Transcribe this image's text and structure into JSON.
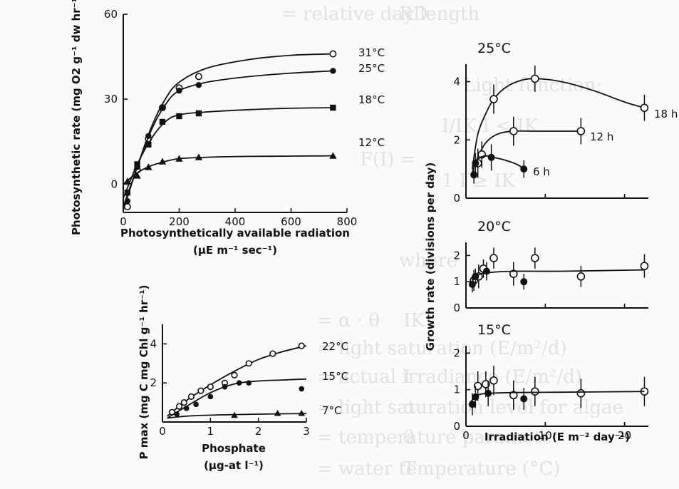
{
  "background_text": {
    "lines": [
      {
        "left": "RD",
        "right": "=   relative day length"
      },
      {
        "left": "",
        "right": "Light function:"
      },
      {
        "left": "",
        "right": "I/IK    I < IK"
      },
      {
        "left": "",
        "right": "F(I) ="
      },
      {
        "left": "",
        "right": "1       I ≥ IK"
      },
      {
        "left": "",
        "right": "where"
      },
      {
        "left": "IK",
        "right": "=   α · θ"
      },
      {
        "left": "",
        "right": "=   light saturation (E/m²/d)"
      },
      {
        "left": "I",
        "right": "=   actual irradiance (E/m²/d)"
      },
      {
        "left": "α",
        "right": "=   light saturation level for algae"
      },
      {
        "left": "θ",
        "right": "=   temperature parameter"
      },
      {
        "left": "T",
        "right": "=   water temperature (°C)"
      }
    ]
  },
  "chart_data": [
    {
      "type": "line",
      "ylabel": "Photosynthetic rate (mg O2 g⁻¹ dw hr⁻¹)",
      "xlabel": "Photosynthetically available radiation",
      "xlabel_unit": "(μE m⁻¹ sec⁻¹)",
      "xlim": [
        0,
        800
      ],
      "ylim": [
        -10,
        60
      ],
      "xticks": [
        0,
        200,
        400,
        600,
        800
      ],
      "yticks": [
        0,
        30,
        60
      ],
      "series": [
        {
          "name": "31°C",
          "marker": "circle-open",
          "x": [
            15,
            50,
            90,
            140,
            200,
            270,
            750
          ],
          "y": [
            -8,
            5,
            16,
            27,
            34,
            38,
            46
          ],
          "curve_x": [
            0,
            50,
            100,
            150,
            200,
            300,
            450,
            600,
            750
          ],
          "curve_y": [
            -9,
            6,
            20,
            30,
            36,
            41,
            44,
            45.5,
            46
          ]
        },
        {
          "name": "25°C",
          "marker": "circle-filled",
          "x": [
            15,
            50,
            90,
            140,
            200,
            270,
            750
          ],
          "y": [
            -6,
            6,
            17,
            27,
            33,
            35,
            40
          ],
          "curve_x": [
            0,
            50,
            100,
            150,
            200,
            300,
            450,
            600,
            750
          ],
          "curve_y": [
            -8,
            6,
            19,
            28,
            33,
            36,
            38,
            39.2,
            40
          ]
        },
        {
          "name": "18°C",
          "marker": "square-filled",
          "x": [
            15,
            50,
            90,
            140,
            200,
            270,
            750
          ],
          "y": [
            -3,
            7,
            14,
            22,
            24,
            25,
            27
          ],
          "curve_x": [
            0,
            50,
            100,
            150,
            200,
            300,
            450,
            600,
            750
          ],
          "curve_y": [
            -5,
            7,
            16,
            22,
            24.5,
            25.5,
            26.3,
            26.8,
            27
          ]
        },
        {
          "name": "12°C",
          "marker": "triangle-filled",
          "x": [
            15,
            50,
            90,
            140,
            200,
            270,
            750
          ],
          "y": [
            1,
            3,
            6,
            8,
            9,
            9.5,
            10
          ],
          "curve_x": [
            0,
            50,
            100,
            150,
            200,
            300,
            450,
            600,
            750
          ],
          "curve_y": [
            0,
            4,
            6.5,
            8,
            9,
            9.5,
            9.8,
            9.9,
            10
          ]
        }
      ]
    },
    {
      "type": "line",
      "ylabel": "P max (mg C mg Chl g⁻¹ hr⁻¹)",
      "xlabel": "Phosphate",
      "xlabel_unit": "(μg-at l⁻¹)",
      "xlim": [
        0,
        3
      ],
      "ylim": [
        0,
        5
      ],
      "xticks": [
        0,
        1,
        2,
        3
      ],
      "yticks": [
        2,
        4
      ],
      "series": [
        {
          "name": "22°C",
          "marker": "circle-open",
          "x": [
            0.2,
            0.35,
            0.45,
            0.6,
            0.8,
            1.0,
            1.3,
            1.5,
            1.8,
            2.3,
            2.9
          ],
          "y": [
            0.5,
            0.8,
            1.0,
            1.3,
            1.6,
            1.8,
            2.0,
            2.4,
            3.0,
            3.5,
            3.9
          ],
          "curve_x": [
            0.1,
            0.5,
            1.0,
            1.5,
            2.0,
            2.5,
            3.0
          ],
          "curve_y": [
            0.3,
            1.1,
            1.9,
            2.6,
            3.2,
            3.6,
            3.9
          ]
        },
        {
          "name": "15°C",
          "marker": "circle-filled",
          "x": [
            0.3,
            0.5,
            0.7,
            1.0,
            1.3,
            1.6,
            1.8,
            2.9
          ],
          "y": [
            0.4,
            0.7,
            0.9,
            1.3,
            1.8,
            2.0,
            2.0,
            1.7
          ],
          "curve_x": [
            0.1,
            0.5,
            1.0,
            1.5,
            2.0,
            2.5,
            3.0
          ],
          "curve_y": [
            0.2,
            0.8,
            1.5,
            1.95,
            2.1,
            2.15,
            2.2
          ]
        },
        {
          "name": "7°C",
          "marker": "triangle-filled",
          "x": [
            1.5,
            2.4,
            2.9
          ],
          "y": [
            0.35,
            0.45,
            0.45
          ],
          "curve_x": [
            0.1,
            0.5,
            1.0,
            1.5,
            2.0,
            2.5,
            3.0
          ],
          "curve_y": [
            0.2,
            0.3,
            0.35,
            0.38,
            0.4,
            0.42,
            0.43
          ]
        }
      ]
    },
    {
      "type": "line",
      "title": "25°C",
      "xlim": [
        0,
        23
      ],
      "ylim": [
        0,
        4.6
      ],
      "yticks": [
        0,
        2,
        4
      ],
      "series": [
        {
          "name": "18 h",
          "marker": "circle-open",
          "x": [
            1.5,
            3.5,
            8.7,
            22.5
          ],
          "y": [
            1.2,
            3.4,
            4.1,
            3.1
          ],
          "err": [
            0.5,
            0.5,
            0.45,
            0.45
          ],
          "curve_x": [
            0.8,
            1.5,
            2.5,
            3.5,
            5,
            7,
            9,
            12,
            16,
            20,
            22.5
          ],
          "curve_y": [
            1.0,
            2.2,
            2.9,
            3.4,
            3.8,
            4.05,
            4.1,
            4.0,
            3.7,
            3.3,
            3.1
          ]
        },
        {
          "name": "12 h",
          "marker": "circle-open",
          "x": [
            2.0,
            6.0,
            14.5
          ],
          "y": [
            1.5,
            2.3,
            2.3
          ],
          "err": [
            0.45,
            0.5,
            0.45
          ],
          "curve_x": [
            0.8,
            1.5,
            2.5,
            4,
            6,
            9,
            12,
            14.5
          ],
          "curve_y": [
            0.9,
            1.4,
            1.9,
            2.2,
            2.3,
            2.3,
            2.3,
            2.3
          ]
        },
        {
          "name": "6 h",
          "marker": "circle-filled",
          "x": [
            1.0,
            1.2,
            3.2,
            7.3
          ],
          "y": [
            0.8,
            1.2,
            1.4,
            1.0
          ],
          "err": [
            0.3,
            0.35,
            0.45,
            0.3
          ],
          "curve_x": [
            0.8,
            1.5,
            2.5,
            3.5,
            5,
            6.5,
            7.3
          ],
          "curve_y": [
            1.1,
            1.35,
            1.45,
            1.4,
            1.3,
            1.15,
            1.0
          ]
        }
      ]
    },
    {
      "type": "scatter",
      "title": "20°C",
      "ylabel": "Growth rate (divisions per day)",
      "xlim": [
        0,
        23
      ],
      "ylim": [
        0,
        2.5
      ],
      "yticks": [
        0,
        1,
        2
      ],
      "series": [
        {
          "name": "",
          "marker": "circle-open",
          "x": [
            1.0,
            1.6,
            2.2,
            3.5,
            8.7,
            6.0,
            14.5,
            22.5
          ],
          "y": [
            1.05,
            1.2,
            1.5,
            1.9,
            1.9,
            1.3,
            1.2,
            1.6
          ],
          "err": [
            0.4,
            0.45,
            0.35,
            0.4,
            0.4,
            0.45,
            0.4,
            0.45
          ]
        },
        {
          "name": "",
          "marker": "circle-filled",
          "x": [
            0.8,
            1.2,
            2.6,
            7.3
          ],
          "y": [
            0.9,
            1.2,
            1.4,
            1.0
          ],
          "err": [
            0.3,
            0.3,
            0.35,
            0.3
          ]
        },
        {
          "name": "",
          "marker": "none",
          "curve_x": [
            0.5,
            1.5,
            3,
            6,
            12,
            22.5
          ],
          "curve_y": [
            0.9,
            1.25,
            1.35,
            1.4,
            1.4,
            1.45
          ]
        }
      ]
    },
    {
      "type": "scatter",
      "title": "15°C",
      "xlabel": "Irradiation (E m⁻² day⁻¹)",
      "xlim": [
        0,
        23
      ],
      "ylim": [
        0,
        2.2
      ],
      "xticks": [
        0,
        10,
        20
      ],
      "yticks": [
        0,
        1,
        2
      ],
      "series": [
        {
          "name": "",
          "marker": "circle-open",
          "x": [
            1.5,
            2.5,
            3.5,
            6.0,
            8.7,
            14.5,
            22.5
          ],
          "y": [
            1.1,
            1.15,
            1.25,
            0.85,
            0.95,
            0.9,
            0.95
          ],
          "err": [
            0.4,
            0.35,
            0.4,
            0.4,
            0.4,
            0.4,
            0.4
          ]
        },
        {
          "name": "",
          "marker": "circle-filled",
          "x": [
            0.8,
            1.2,
            2.8,
            7.3
          ],
          "y": [
            0.6,
            0.8,
            0.9,
            0.75
          ],
          "err": [
            0.3,
            0.3,
            0.35,
            0.3
          ]
        },
        {
          "name": "",
          "marker": "none",
          "curve_x": [
            0.5,
            1.5,
            3,
            6,
            12,
            22.5
          ],
          "curve_y": [
            0.65,
            0.85,
            0.9,
            0.92,
            0.93,
            0.95
          ]
        }
      ]
    }
  ]
}
